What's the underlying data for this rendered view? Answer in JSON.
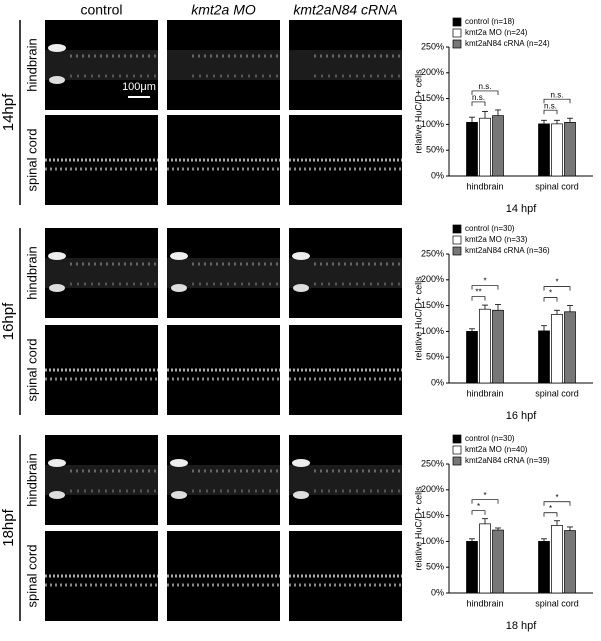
{
  "panels": {
    "columns": [
      "control",
      "kmt2a MO",
      "kmt2aN84 cRNA"
    ],
    "rows": [
      "hindbrain",
      "spinal cord"
    ],
    "stages": [
      "14hpf",
      "16hpf",
      "18hpf"
    ],
    "scale_bar": "100μm"
  },
  "chart_data": [
    {
      "type": "bar",
      "title": "14 hpf",
      "ylabel": "relative HuC/D+ cells",
      "categories": [
        "hindbrain",
        "spinal cord"
      ],
      "series": [
        {
          "name": "control (n=18)",
          "color": "#000000",
          "values": [
            104,
            101
          ],
          "errors": [
            10,
            7
          ]
        },
        {
          "name": "kmt2a MO (n=24)",
          "color": "#ffffff",
          "values": [
            112,
            101
          ],
          "errors": [
            13,
            7
          ]
        },
        {
          "name": "kmt2aN84 cRNA (n=24)",
          "color": "#777777",
          "values": [
            117,
            104
          ],
          "errors": [
            11,
            8
          ]
        }
      ],
      "ylim": [
        0,
        250
      ],
      "yticks": [
        {
          "value": 0,
          "label": "0%"
        },
        {
          "value": 50,
          "label": "50%"
        },
        {
          "value": 100,
          "label": "100%"
        },
        {
          "value": 150,
          "label": "150%"
        },
        {
          "value": 200,
          "label": "200%"
        },
        {
          "value": 250,
          "label": "250%"
        }
      ],
      "significance": [
        "n.s.",
        "n.s.",
        "n.s.",
        "n.s."
      ]
    },
    {
      "type": "bar",
      "title": "16 hpf",
      "ylabel": "relative HuC/D+ cells",
      "categories": [
        "hindbrain",
        "spinal cord"
      ],
      "series": [
        {
          "name": "control (n=30)",
          "color": "#000000",
          "values": [
            100,
            101
          ],
          "errors": [
            5,
            10
          ]
        },
        {
          "name": "kmt2a MO (n=33)",
          "color": "#ffffff",
          "values": [
            143,
            133
          ],
          "errors": [
            8,
            8
          ]
        },
        {
          "name": "kmt2aN84 cRNA (n=36)",
          "color": "#777777",
          "values": [
            141,
            138
          ],
          "errors": [
            11,
            12
          ]
        }
      ],
      "ylim": [
        0,
        250
      ],
      "yticks": [
        {
          "value": 0,
          "label": "0%"
        },
        {
          "value": 50,
          "label": "50%"
        },
        {
          "value": 100,
          "label": "100%"
        },
        {
          "value": 150,
          "label": "150%"
        },
        {
          "value": 200,
          "label": "200%"
        },
        {
          "value": 250,
          "label": "250%"
        }
      ],
      "significance": [
        "**",
        "*",
        "*",
        "*"
      ]
    },
    {
      "type": "bar",
      "title": "18 hpf",
      "ylabel": "relative HuC/D+ cells",
      "categories": [
        "hindbrain",
        "spinal cord"
      ],
      "series": [
        {
          "name": "control (n=30)",
          "color": "#000000",
          "values": [
            100,
            100
          ],
          "errors": [
            5,
            5
          ]
        },
        {
          "name": "kmt2a MO (n=40)",
          "color": "#ffffff",
          "values": [
            134,
            131
          ],
          "errors": [
            10,
            9
          ]
        },
        {
          "name": "kmt2aN84 cRNA (n=39)",
          "color": "#777777",
          "values": [
            122,
            121
          ],
          "errors": [
            4,
            7
          ]
        }
      ],
      "ylim": [
        0,
        250
      ],
      "yticks": [
        {
          "value": 0,
          "label": "0%"
        },
        {
          "value": 50,
          "label": "50%"
        },
        {
          "value": 100,
          "label": "100%"
        },
        {
          "value": 150,
          "label": "150%"
        },
        {
          "value": 200,
          "label": "200%"
        },
        {
          "value": 250,
          "label": "250%"
        }
      ],
      "significance": [
        "*",
        "*",
        "*",
        "*"
      ]
    }
  ]
}
